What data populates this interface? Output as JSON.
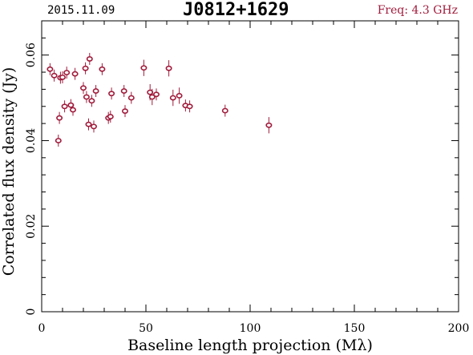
{
  "header": {
    "date": "2015.11.09",
    "source": "J0812+1629",
    "freq": "Freq: 4.3 GHz"
  },
  "colors": {
    "points": "#a01c3c",
    "freq_text": "#a01c3c",
    "axes": "#000000"
  },
  "chart_data": {
    "type": "scatter",
    "xlabel": "Baseline length projection (Mλ)",
    "ylabel": "Correlated flux density (Jy)",
    "xlim": [
      0,
      200
    ],
    "ylim": [
      0,
      0.068
    ],
    "xticks_major": [
      0,
      50,
      100,
      150,
      200
    ],
    "xtick_labels": [
      "0",
      "50",
      "100",
      "150",
      "200"
    ],
    "yticks_major": [
      0,
      0.02,
      0.04,
      0.06
    ],
    "ytick_labels": [
      "0",
      "0.02",
      "0.04",
      "0.06"
    ],
    "grid": false,
    "series": [
      {
        "marker": "open-circle-with-errorbar",
        "x": [
          4,
          6,
          8,
          8.5,
          9,
          10,
          11,
          12,
          14,
          15,
          16,
          20,
          21,
          21.5,
          22.5,
          23,
          24,
          25,
          26,
          29,
          32,
          33,
          33.5,
          39.5,
          40,
          43,
          49,
          52,
          53,
          55,
          61,
          63,
          66,
          69,
          71,
          88,
          109
        ],
        "y": [
          0.0567,
          0.0552,
          0.04,
          0.0453,
          0.0547,
          0.0548,
          0.048,
          0.0559,
          0.0483,
          0.0472,
          0.0556,
          0.0523,
          0.0569,
          0.0502,
          0.0438,
          0.0591,
          0.0493,
          0.0433,
          0.0516,
          0.0567,
          0.0453,
          0.0456,
          0.051,
          0.0516,
          0.0469,
          0.05,
          0.057,
          0.0513,
          0.0502,
          0.0508,
          0.0569,
          0.05,
          0.0505,
          0.0482,
          0.048,
          0.047,
          0.0436
        ],
        "yerr": [
          0.0014,
          0.0014,
          0.0014,
          0.0014,
          0.0014,
          0.0014,
          0.0014,
          0.0014,
          0.0014,
          0.0014,
          0.0014,
          0.0014,
          0.0014,
          0.0014,
          0.0014,
          0.0014,
          0.0014,
          0.0014,
          0.0014,
          0.0014,
          0.0014,
          0.0014,
          0.0014,
          0.0014,
          0.0014,
          0.0014,
          0.0019,
          0.0019,
          0.0019,
          0.0014,
          0.0019,
          0.0019,
          0.0019,
          0.0014,
          0.0014,
          0.0014,
          0.0019
        ]
      }
    ]
  }
}
